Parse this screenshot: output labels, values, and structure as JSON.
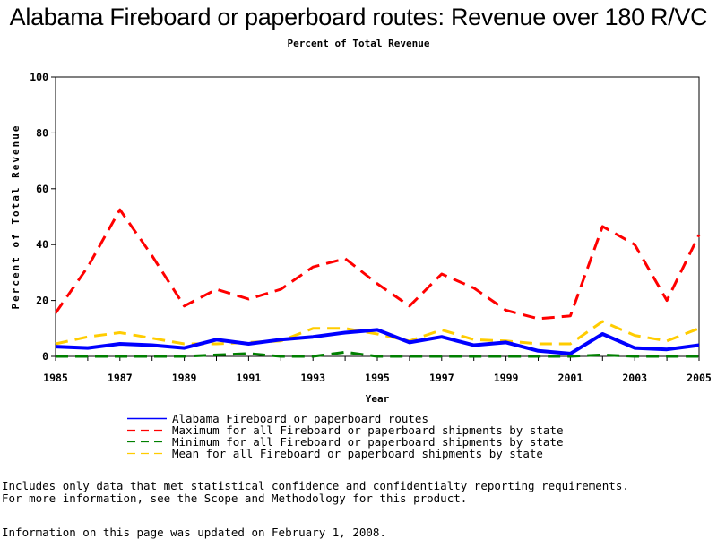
{
  "chart_data": {
    "type": "line",
    "title": "Alabama Fireboard or paperboard routes: Revenue over 180 R/VC",
    "subtitle": "Percent of Total Revenue",
    "xlabel": "Year",
    "ylabel": "Percent of Total Revenue",
    "ylim": [
      0,
      100
    ],
    "xlim": [
      1985,
      2005
    ],
    "y_ticks": [
      0,
      20,
      40,
      60,
      80,
      100
    ],
    "x_ticks": [
      1985,
      1987,
      1989,
      1991,
      1993,
      1995,
      1997,
      1999,
      2001,
      2003,
      2005
    ],
    "grid": false,
    "legend_position": "bottom",
    "x": [
      1985,
      1986,
      1987,
      1988,
      1989,
      1990,
      1991,
      1992,
      1993,
      1994,
      1995,
      1996,
      1997,
      1998,
      1999,
      2000,
      2001,
      2002,
      2003,
      2004,
      2005
    ],
    "series": [
      {
        "name": "Alabama Fireboard or paperboard routes",
        "color": "#0000ff",
        "style": "solid",
        "values": [
          3.5,
          3.0,
          4.5,
          4.0,
          3.0,
          6.0,
          4.5,
          6.0,
          7.0,
          8.5,
          9.5,
          5.0,
          7.0,
          4.0,
          5.0,
          2.0,
          1.0,
          8.0,
          3.0,
          2.5,
          4.0
        ]
      },
      {
        "name": "Maximum for all Fireboard or paperboard shipments by state",
        "color": "#ff0000",
        "style": "dashed",
        "values": [
          15.5,
          32.0,
          52.5,
          36.0,
          18.0,
          24.0,
          20.5,
          24.0,
          32.0,
          35.0,
          26.0,
          18.0,
          29.5,
          24.5,
          16.5,
          13.5,
          14.5,
          46.5,
          40.0,
          20.0,
          43.5
        ]
      },
      {
        "name": "Minimum for all Fireboard or paperboard shipments by state",
        "color": "#008000",
        "style": "dashed",
        "values": [
          0.0,
          0.0,
          0.0,
          0.0,
          0.0,
          0.5,
          1.0,
          0.0,
          0.0,
          1.5,
          0.0,
          0.0,
          0.0,
          0.0,
          0.0,
          0.0,
          0.0,
          0.5,
          0.0,
          0.0,
          0.0
        ]
      },
      {
        "name": "Mean for all Fireboard or paperboard shipments by state",
        "color": "#ffcc00",
        "style": "dashed",
        "values": [
          4.5,
          7.0,
          8.5,
          6.5,
          4.5,
          4.5,
          5.0,
          5.5,
          10.0,
          10.0,
          8.0,
          5.5,
          9.5,
          6.0,
          5.5,
          4.5,
          4.5,
          12.5,
          7.5,
          5.5,
          10.0
        ]
      }
    ]
  },
  "footnotes": {
    "line1": "Includes only data that met statistical confidence and confidentialty reporting requirements.",
    "line2": "For more information, see the Scope and Methodology for this product.",
    "updated": "Information on this page was updated on February 1, 2008."
  }
}
